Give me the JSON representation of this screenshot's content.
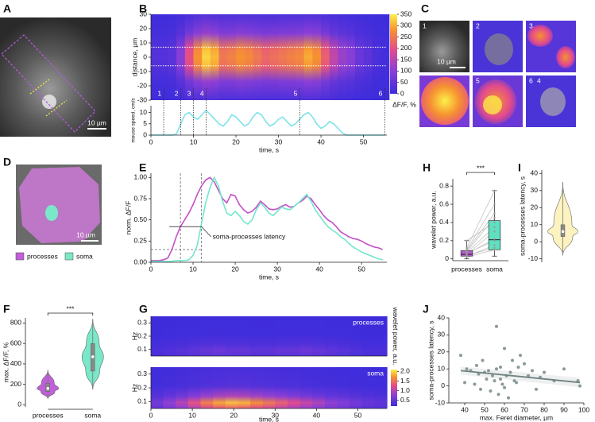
{
  "panel_letters": [
    "A",
    "B",
    "C",
    "D",
    "E",
    "F",
    "G",
    "H",
    "I",
    "J"
  ],
  "images": {
    "a_scale": "10 µm",
    "c_scale": "10 µm",
    "d_scale": "10 µm",
    "c_tile_labels": [
      "1",
      "2",
      "3",
      "5",
      "6",
      "4"
    ],
    "d_legend": [
      {
        "name": "processes",
        "color": "#c060d8"
      },
      {
        "name": "soma",
        "color": "#7ae8c8"
      }
    ]
  },
  "chart_data": [
    {
      "type": "heatmap",
      "ylabel": "distance, µm",
      "x": [
        1,
        3,
        5,
        7,
        9,
        11,
        13,
        15,
        17,
        19,
        21,
        23,
        25,
        27,
        29,
        31,
        33,
        35,
        37,
        39,
        41,
        43,
        45,
        47,
        49,
        51,
        53,
        55
      ],
      "values": [
        30,
        30,
        40,
        100,
        200,
        280,
        330,
        310,
        250,
        260,
        280,
        270,
        250,
        230,
        240,
        250,
        260,
        270,
        300,
        280,
        220,
        160,
        120,
        100,
        60,
        40,
        20,
        10
      ],
      "xlim": [
        0,
        55.5
      ],
      "ylim": [
        -30,
        30
      ],
      "yticks": [
        -30,
        -20,
        -10,
        0,
        10,
        20,
        30
      ],
      "hlines": [
        7,
        -6
      ],
      "colorbar": {
        "label": "ΔF/F, %",
        "lim": [
          0,
          350
        ],
        "ticks": [
          0,
          50,
          100,
          150,
          200,
          250,
          300,
          350
        ]
      }
    },
    {
      "type": "line",
      "ylabel": "mouse speed, cm/s",
      "xlabel": "time, s",
      "x": [
        0,
        1,
        2,
        3,
        4,
        5,
        6,
        7,
        8,
        9,
        10,
        11,
        12,
        13,
        14,
        15,
        16,
        17,
        18,
        19,
        20,
        21,
        22,
        23,
        24,
        25,
        26,
        27,
        28,
        29,
        30,
        31,
        32,
        33,
        34,
        35,
        36,
        37,
        38,
        39,
        40,
        41,
        42,
        43,
        44,
        45,
        46,
        47,
        48,
        49,
        50,
        51,
        52,
        53,
        54,
        55
      ],
      "series": [
        {
          "color": "#7fe3e8",
          "values": [
            0,
            0,
            0,
            0,
            0,
            0,
            0.5,
            5,
            9,
            10,
            8,
            7,
            9,
            11,
            9,
            7,
            5,
            4,
            6,
            9,
            8,
            6,
            4,
            5,
            8,
            10,
            9,
            6,
            4,
            5,
            7,
            8,
            6,
            4,
            5,
            7,
            9,
            10,
            8,
            5,
            3,
            4,
            6,
            5,
            3,
            1,
            0,
            0,
            0,
            0,
            0,
            0,
            0,
            0,
            0,
            0
          ]
        }
      ],
      "xlim": [
        0,
        55.5
      ],
      "xticks": [
        0,
        10,
        20,
        30,
        40,
        50
      ],
      "ylim": [
        0,
        13
      ],
      "yticks": [
        0,
        5,
        10
      ],
      "events": {
        "x": [
          3,
          7,
          10,
          13,
          35,
          55
        ],
        "labels": [
          "1",
          "2",
          "3",
          "4",
          "5",
          "6"
        ]
      }
    },
    {
      "type": "line",
      "ylabel": "norm. ΔF/F",
      "xlabel": "time, s",
      "x": [
        0,
        1,
        2,
        3,
        4,
        5,
        6,
        7,
        8,
        9,
        10,
        11,
        12,
        13,
        14,
        15,
        16,
        17,
        18,
        19,
        20,
        21,
        22,
        23,
        24,
        25,
        26,
        27,
        28,
        29,
        30,
        31,
        32,
        33,
        34,
        35,
        36,
        37,
        38,
        39,
        40,
        41,
        42,
        43,
        44,
        45,
        46,
        47,
        48,
        49,
        50,
        51,
        52,
        53,
        54,
        55
      ],
      "series": [
        {
          "color": "#c54fc9",
          "values": [
            0.02,
            0.02,
            0.02,
            0.03,
            0.05,
            0.15,
            0.3,
            0.42,
            0.5,
            0.58,
            0.68,
            0.8,
            0.9,
            0.97,
            1.0,
            0.95,
            0.85,
            0.75,
            0.7,
            0.8,
            0.78,
            0.68,
            0.62,
            0.58,
            0.6,
            0.65,
            0.72,
            0.68,
            0.63,
            0.62,
            0.63,
            0.66,
            0.68,
            0.65,
            0.66,
            0.7,
            0.73,
            0.78,
            0.75,
            0.68,
            0.62,
            0.55,
            0.5,
            0.47,
            0.42,
            0.36,
            0.33,
            0.3,
            0.28,
            0.27,
            0.25,
            0.22,
            0.2,
            0.18,
            0.17,
            0.15
          ]
        },
        {
          "color": "#72e6cc",
          "values": [
            0.01,
            0.01,
            0.01,
            0.01,
            0.01,
            0.01,
            0.02,
            0.02,
            0.02,
            0.03,
            0.08,
            0.2,
            0.45,
            0.7,
            0.88,
            1.0,
            0.9,
            0.72,
            0.58,
            0.55,
            0.6,
            0.55,
            0.48,
            0.45,
            0.5,
            0.62,
            0.7,
            0.65,
            0.58,
            0.55,
            0.6,
            0.65,
            0.63,
            0.62,
            0.66,
            0.7,
            0.75,
            0.8,
            0.72,
            0.62,
            0.55,
            0.48,
            0.42,
            0.38,
            0.35,
            0.3,
            0.27,
            0.22,
            0.18,
            0.15,
            0.12,
            0.1,
            0.08,
            0.06,
            0.04,
            0.03
          ]
        }
      ],
      "xlim": [
        0,
        56
      ],
      "xticks": [
        0,
        10,
        20,
        30,
        40,
        50
      ],
      "ylim": [
        0,
        1.05
      ],
      "yticks": [
        {
          "value": 0,
          "label": "0.00"
        },
        0.25,
        {
          "value": 0.5,
          "label": "0.50"
        },
        0.75,
        {
          "value": 1,
          "label": "1.00"
        }
      ],
      "vlines": [
        7,
        12
      ],
      "hline": 0.15,
      "annotation": "soma-processes latency"
    },
    {
      "type": "violin",
      "ylabel": "max. ΔF/F, %",
      "categories": [
        "processes",
        "soma"
      ],
      "colors": [
        "#c060d8",
        "#7ae8c8"
      ],
      "min": [
        60,
        150
      ],
      "q1": [
        130,
        330
      ],
      "median": [
        160,
        470
      ],
      "q3": [
        210,
        600
      ],
      "max": [
        340,
        840
      ],
      "ylim": [
        -20,
        850
      ],
      "yticks": [
        0,
        200,
        400,
        600,
        800
      ],
      "significance": "***"
    },
    {
      "type": "heatmap",
      "ylabel": "Hz",
      "xlabel": "time, s",
      "x": [
        1.5,
        4.5,
        7.5,
        10.5,
        13.5,
        16.5,
        19.5,
        22.5,
        25.5,
        28.5,
        31.5,
        34.5,
        37.5,
        40.5,
        43.5,
        46.5,
        49.5,
        52.5,
        55.5
      ],
      "series": [
        {
          "name": "processes",
          "values": [
            0.3,
            0.35,
            0.4,
            0.45,
            0.5,
            0.55,
            0.5,
            0.5,
            0.45,
            0.45,
            0.5,
            0.5,
            0.55,
            0.5,
            0.45,
            0.4,
            0.35,
            0.3,
            0.3
          ]
        },
        {
          "name": "soma",
          "values": [
            0.6,
            0.8,
            1.0,
            1.3,
            1.6,
            1.8,
            1.9,
            1.85,
            1.7,
            1.55,
            1.4,
            1.25,
            1.1,
            0.95,
            0.8,
            0.7,
            0.6,
            0.5,
            0.45
          ]
        }
      ],
      "xlim": [
        0,
        57
      ],
      "xticks": [
        0,
        10,
        20,
        30,
        40,
        50
      ],
      "ylim": [
        0.05,
        0.35
      ],
      "yticks": [
        0.1,
        0.2,
        0.3
      ],
      "colorbar": {
        "label": "wavelet power, a.u.",
        "lim": [
          0.2,
          2.1
        ],
        "ticks": [
          0.5,
          {
            "value": 1,
            "label": "1.0"
          },
          1.5,
          {
            "value": 2,
            "label": "2.0"
          }
        ]
      }
    },
    {
      "type": "box",
      "ylabel": "wavelet power, a.u.",
      "categories": [
        "processes",
        "soma"
      ],
      "colors": [
        "#b65bd0",
        "#5fe0c0"
      ],
      "min": [
        0,
        0.03
      ],
      "q1": [
        0.03,
        0.1
      ],
      "median": [
        0.05,
        0.21
      ],
      "q3": [
        0.09,
        0.42
      ],
      "max": [
        0.2,
        0.75
      ],
      "points": [
        [
          0.02,
          0.05,
          0.08,
          0.03,
          0.1,
          0.06,
          0.04,
          0.12,
          0.07,
          0.2,
          0.05,
          0.09
        ],
        [
          0.1,
          0.3,
          0.45,
          0.15,
          0.6,
          0.2,
          0.12,
          0.75,
          0.35,
          0.4,
          0.22,
          0.5
        ]
      ],
      "ylim": [
        -0.02,
        0.88
      ],
      "yticks": [
        0,
        0.2,
        0.4,
        0.6,
        0.8
      ],
      "significance": "***"
    },
    {
      "type": "violin",
      "ylabel": "soma-processes latency, s",
      "colors": [
        "#fdf3c0"
      ],
      "min": [
        -8
      ],
      "q1": [
        3
      ],
      "median": [
        6
      ],
      "q3": [
        10
      ],
      "max": [
        35
      ],
      "ylim": [
        -12,
        42
      ],
      "yticks": [
        -10,
        0,
        10,
        20,
        30,
        40
      ]
    },
    {
      "type": "scatter",
      "xlabel": "max. Feret diameter, µm",
      "ylabel": "soma-processes latency, s",
      "color": "#8a9a98",
      "x": [
        38,
        40,
        41,
        43,
        45,
        46,
        47,
        48,
        49,
        50,
        51,
        52,
        53,
        54,
        55,
        56,
        56,
        57,
        58,
        58,
        59,
        60,
        60,
        61,
        62,
        63,
        64,
        65,
        66,
        67,
        68,
        70,
        72,
        74,
        76,
        78,
        80,
        85,
        90,
        97,
        98
      ],
      "values": [
        18,
        2,
        10,
        9,
        1,
        12,
        7,
        -2,
        15,
        8,
        4,
        9,
        -3,
        6,
        3,
        35,
        10,
        -5,
        11,
        4,
        1,
        -1,
        22,
        6,
        -7,
        8,
        15,
        3,
        2,
        11,
        18,
        13,
        6,
        9,
        -2,
        5,
        8,
        3,
        10,
        3,
        0
      ],
      "fit": {
        "x": [
          38,
          98
        ],
        "values": [
          9,
          2
        ]
      },
      "xlim": [
        32,
        100
      ],
      "xticks": [
        40,
        50,
        60,
        70,
        80,
        90,
        100
      ],
      "ylim": [
        -10,
        40
      ],
      "yticks": [
        -10,
        0,
        10,
        20,
        30,
        40
      ]
    }
  ]
}
